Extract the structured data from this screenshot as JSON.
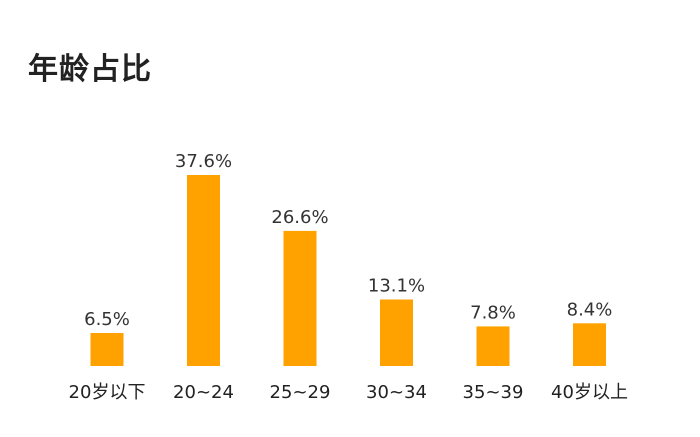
{
  "chart_data": {
    "type": "bar",
    "title": "年龄占比",
    "categories": [
      "20岁以下",
      "20~24",
      "25~29",
      "30~34",
      "35~39",
      "40岁以上"
    ],
    "values": [
      6.5,
      37.6,
      26.6,
      13.1,
      7.8,
      8.4
    ],
    "value_labels": [
      "6.5%",
      "37.6%",
      "26.6%",
      "13.1%",
      "7.8%",
      "8.4%"
    ],
    "unit": "%",
    "bar_color": "#FFA200",
    "ylim": [
      0,
      37.6
    ],
    "grid": false,
    "legend": "none"
  }
}
